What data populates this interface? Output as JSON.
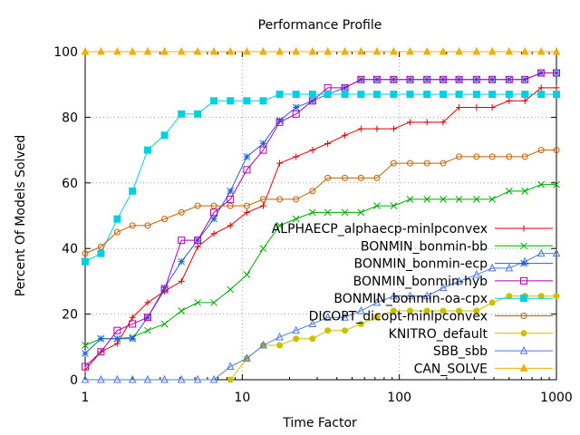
{
  "chart_data": {
    "type": "line",
    "title": "Performance Profile",
    "xlabel": "Time Factor",
    "ylabel": "Percent Of Models Solved",
    "xscale": "log",
    "xlim": [
      1,
      1000
    ],
    "ylim": [
      0,
      100
    ],
    "x_ticks": [
      1,
      10,
      100,
      1000
    ],
    "x_tick_labels": [
      "1",
      "10",
      "100",
      "1000"
    ],
    "y_ticks": [
      0,
      20,
      40,
      60,
      80,
      100
    ],
    "y_tick_labels": [
      "0",
      "20",
      "40",
      "60",
      "80",
      "100"
    ],
    "grid": true,
    "legend_position": "right-center",
    "series": [
      {
        "name": "ALPHAECP_alphaecp-minlpconvex",
        "color": "#dd0000",
        "marker": "plus",
        "x": [
          1,
          1.26,
          1.6,
          2,
          2.5,
          3.2,
          4.1,
          5.2,
          6.6,
          8.4,
          10.7,
          13.6,
          17.3,
          22,
          28,
          35,
          45,
          57,
          72,
          92,
          117,
          150,
          190,
          240,
          310,
          390,
          500,
          630,
          800,
          1000
        ],
        "values": [
          3,
          8.5,
          11,
          19,
          23.5,
          27,
          30,
          40.5,
          44.5,
          47,
          51,
          53,
          66,
          68,
          70,
          72,
          74.5,
          76.5,
          76.5,
          76.5,
          78.5,
          78.5,
          78.5,
          83,
          83,
          83,
          85,
          85,
          89,
          89
        ]
      },
      {
        "name": "BONMIN_bonmin-bb",
        "color": "#00aa00",
        "marker": "x",
        "x": [
          1,
          1.26,
          1.6,
          2,
          2.5,
          3.2,
          4.1,
          5.2,
          6.6,
          8.4,
          10.7,
          13.6,
          17.3,
          22,
          28,
          35,
          45,
          57,
          72,
          92,
          117,
          150,
          190,
          240,
          310,
          390,
          500,
          630,
          800,
          1000
        ],
        "values": [
          10.5,
          12.5,
          12.5,
          13,
          15,
          17,
          21,
          23.5,
          23.5,
          27.5,
          32,
          40,
          47,
          49,
          51,
          51,
          51,
          51,
          53,
          53,
          55,
          55,
          55,
          55,
          55,
          55,
          57.5,
          57.5,
          59.5,
          59.5
        ]
      },
      {
        "name": "BONMIN_bonmin-ecp",
        "color": "#1f5fd6",
        "marker": "star",
        "x": [
          1,
          1.26,
          1.6,
          2,
          2.5,
          3.2,
          4.1,
          5.2,
          6.6,
          8.4,
          10.7,
          13.6,
          17.3,
          22,
          28,
          35,
          45,
          57,
          72,
          92,
          117,
          150,
          190,
          240,
          310,
          390,
          500,
          630,
          800,
          1000
        ],
        "values": [
          8,
          12.5,
          12.5,
          12.5,
          19,
          28,
          36,
          42.5,
          49,
          57.5,
          68,
          72,
          79,
          83,
          85,
          87,
          89,
          91.5,
          91.5,
          91.5,
          91.5,
          91.5,
          91.5,
          91.5,
          91.5,
          91.5,
          91.5,
          91.5,
          93.5,
          93.5
        ]
      },
      {
        "name": "BONMIN_bonmin-hyb",
        "color": "#b000b0",
        "marker": "square",
        "x": [
          1,
          1.26,
          1.6,
          2,
          2.5,
          3.2,
          4.1,
          5.2,
          6.6,
          8.4,
          10.7,
          13.6,
          17.3,
          22,
          28,
          35,
          45,
          57,
          72,
          92,
          117,
          150,
          190,
          240,
          310,
          390,
          500,
          630,
          800,
          1000
        ],
        "values": [
          4,
          8.5,
          15,
          17,
          19,
          27.5,
          42.5,
          42.5,
          51,
          55,
          64,
          70,
          78.5,
          81,
          85,
          89,
          89,
          91.5,
          91.5,
          91.5,
          91.5,
          91.5,
          91.5,
          91.5,
          91.5,
          91.5,
          91.5,
          91.5,
          93.5,
          93.5
        ]
      },
      {
        "name": "BONMIN_bonmin-oa-cpx",
        "color": "#00d0e0",
        "marker": "filled-square",
        "x": [
          1,
          1.26,
          1.6,
          2,
          2.5,
          3.2,
          4.1,
          5.2,
          6.6,
          8.4,
          10.7,
          13.6,
          17.3,
          22,
          28,
          35,
          45,
          57,
          72,
          92,
          117,
          150,
          190,
          240,
          310,
          390,
          500,
          630,
          800,
          1000
        ],
        "values": [
          36,
          38.5,
          49,
          57.5,
          70,
          74.5,
          81,
          81,
          85,
          85,
          85,
          85,
          87,
          87,
          87,
          87,
          87,
          87,
          87,
          87,
          87,
          87,
          87,
          87,
          87,
          87,
          87,
          87,
          87,
          87
        ]
      },
      {
        "name": "DICOPT_dicopt-minlpconvex",
        "color": "#c86000",
        "marker": "circle",
        "x": [
          1,
          1.26,
          1.6,
          2,
          2.5,
          3.2,
          4.1,
          5.2,
          6.6,
          8.4,
          10.7,
          13.6,
          17.3,
          22,
          28,
          35,
          45,
          57,
          72,
          92,
          117,
          150,
          190,
          240,
          310,
          390,
          500,
          630,
          800,
          1000
        ],
        "values": [
          38.5,
          40.5,
          45,
          47,
          47,
          49,
          51,
          53,
          53,
          53,
          53,
          55,
          55,
          55,
          57.5,
          61.5,
          61.5,
          61.5,
          61.5,
          66,
          66,
          66,
          66,
          68,
          68,
          68,
          68,
          68,
          70,
          70
        ]
      },
      {
        "name": "KNITRO_default",
        "color": "#c8c000",
        "marker": "filled-circle",
        "x": [
          8.4,
          10.7,
          13.6,
          17.3,
          22,
          28,
          35,
          45,
          57,
          72,
          92,
          117,
          150,
          190,
          240,
          310,
          390,
          500,
          630,
          800,
          1000
        ],
        "values": [
          0,
          6.5,
          10.5,
          10.5,
          12.5,
          12.5,
          15,
          15,
          17,
          19,
          21,
          21,
          21,
          21,
          21,
          21,
          23.5,
          25.5,
          25.5,
          25.5,
          25.5
        ]
      },
      {
        "name": "SBB_sbb",
        "color": "#4d7ad8",
        "marker": "triangle",
        "x": [
          1,
          1.26,
          1.6,
          2,
          2.5,
          3.2,
          4.1,
          5.2,
          6.6,
          8.4,
          10.7,
          13.6,
          17.3,
          22,
          28,
          35,
          45,
          57,
          72,
          92,
          117,
          150,
          190,
          240,
          310,
          390,
          500,
          630,
          800,
          1000
        ],
        "values": [
          0,
          0,
          0,
          0,
          0,
          0,
          0,
          0,
          0,
          4,
          6.5,
          10.5,
          13,
          15,
          17,
          19,
          19,
          21,
          23.5,
          25.5,
          25.5,
          25.5,
          28,
          30,
          32,
          34,
          34,
          36,
          38.5,
          38.5
        ]
      },
      {
        "name": "CAN_SOLVE",
        "color": "#f0b000",
        "marker": "filled-triangle",
        "x": [
          1,
          1.26,
          1.6,
          2,
          2.5,
          3.2,
          4.1,
          5.2,
          6.6,
          8.4,
          10.7,
          13.6,
          17.3,
          22,
          28,
          35,
          45,
          57,
          72,
          92,
          117,
          150,
          190,
          240,
          310,
          390,
          500,
          630,
          800,
          1000
        ],
        "values": [
          100,
          100,
          100,
          100,
          100,
          100,
          100,
          100,
          100,
          100,
          100,
          100,
          100,
          100,
          100,
          100,
          100,
          100,
          100,
          100,
          100,
          100,
          100,
          100,
          100,
          100,
          100,
          100,
          100,
          100
        ]
      }
    ]
  }
}
